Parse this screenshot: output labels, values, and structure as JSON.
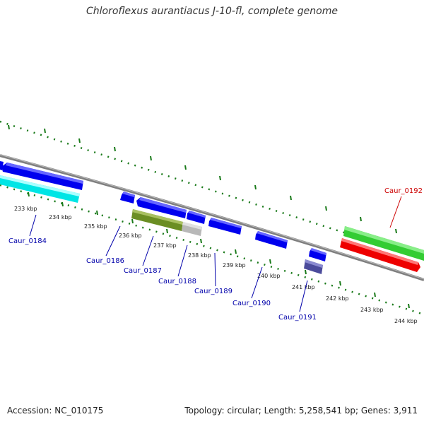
{
  "title": "Chloroflexus aurantiacus J-10-fl, complete genome",
  "footer": {
    "accession": "Accession: NC_010175",
    "summary": "Topology: circular; Length: 5,258,541 bp; Genes: 3,911"
  },
  "colors": {
    "backbone": "#7f7f7f",
    "ticks": "#1a7a1a",
    "label_blue": "#0000aa",
    "label_red": "#cc0000"
  },
  "ticks": [
    "233 kbp",
    "234 kbp",
    "235 kbp",
    "236 kbp",
    "237 kbp",
    "238 kbp",
    "239 kbp",
    "240 kbp",
    "241 kbp",
    "242 kbp",
    "243 kbp",
    "244 kbp"
  ],
  "genes": [
    {
      "label": "Caur_0184",
      "color": "#00e0e0"
    },
    {
      "label": "Caur_0186",
      "color": "#0000ee"
    },
    {
      "label": "Caur_0187",
      "color": "#6b8e23"
    },
    {
      "label": "Caur_0188",
      "color": "#0000ee"
    },
    {
      "label": "Caur_0189",
      "color": "#0000ee"
    },
    {
      "label": "Caur_0190",
      "color": "#0000ee"
    },
    {
      "label": "Caur_0191",
      "color": "#4b4bab"
    },
    {
      "label": "Caur_0192",
      "color": "#33cc33"
    }
  ]
}
